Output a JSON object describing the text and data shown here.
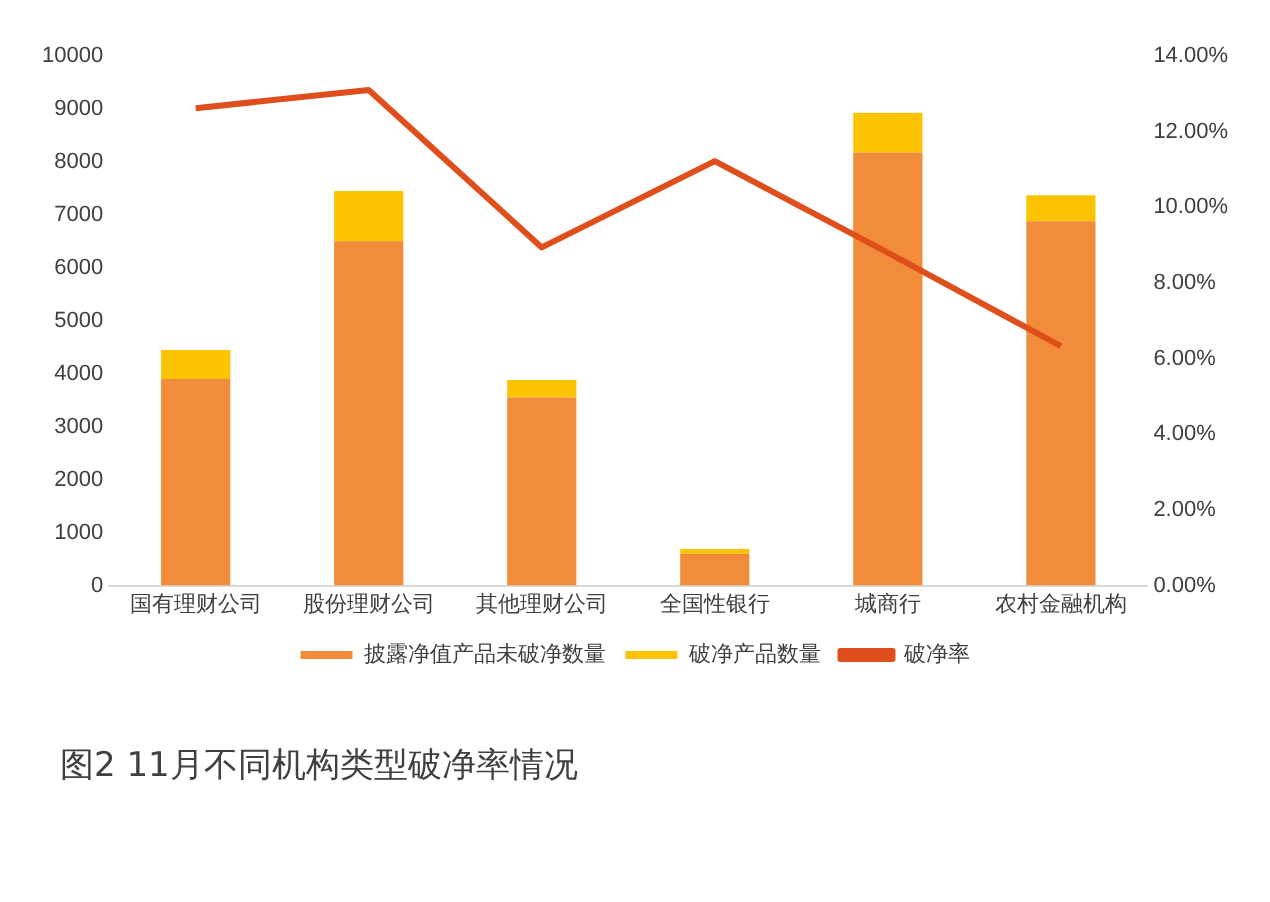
{
  "chart_data": {
    "type": "bar",
    "title": "图2 11月不同机构类型破净率情况",
    "categories": [
      "国有理财公司",
      "股份理财公司",
      "其他理财公司",
      "全国性银行",
      "城商行",
      "农村金融机构"
    ],
    "stacked": true,
    "series": [
      {
        "name": "披露净值产品未破净数量",
        "color": "#f08c3a",
        "values": [
          3900,
          6500,
          3550,
          600,
          8180,
          6880
        ]
      },
      {
        "name": "破净产品数量",
        "color": "#fbc300",
        "values": [
          550,
          950,
          330,
          90,
          750,
          490
        ]
      },
      {
        "name": "破净率",
        "type": "line",
        "axis": "y2",
        "color": "#e04e1b",
        "values": [
          12.62,
          13.1,
          8.94,
          11.22,
          8.8,
          6.33
        ]
      }
    ],
    "ylim": [
      0,
      10000
    ],
    "yticks": [
      0,
      1000,
      2000,
      3000,
      4000,
      5000,
      6000,
      7000,
      8000,
      9000,
      10000
    ],
    "y2lim": [
      0,
      14
    ],
    "y2ticks": [
      {
        "value": 0,
        "label": "0.00%"
      },
      {
        "value": 2,
        "label": "2.00%"
      },
      {
        "value": 4,
        "label": "4.00%"
      },
      {
        "value": 6,
        "label": "6.00%"
      },
      {
        "value": 8,
        "label": "8.00%"
      },
      {
        "value": 10,
        "label": "10.00%"
      },
      {
        "value": 12,
        "label": "12.00%"
      },
      {
        "value": 14,
        "label": "14.00%"
      }
    ],
    "grid": false,
    "legend": "bottom"
  }
}
